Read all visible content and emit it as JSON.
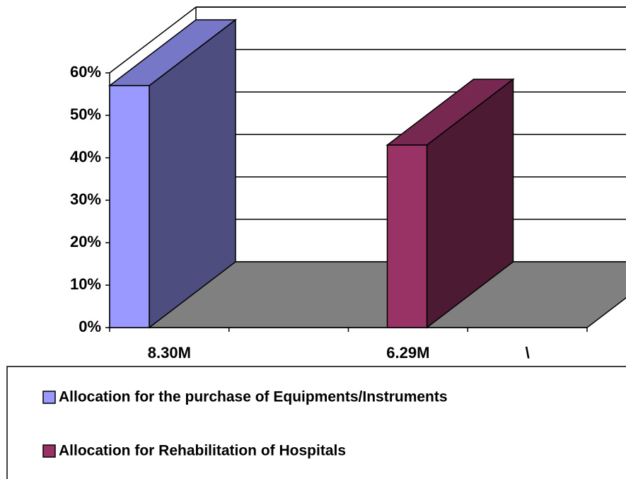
{
  "chart_data": {
    "type": "bar3d",
    "categories": [
      "8.30M",
      null,
      "6.29M",
      "\\"
    ],
    "series": [
      {
        "name": "Allocation for the purchase of Equipments/Instruments",
        "color": "#9999ff",
        "values": [
          57,
          null,
          null,
          null
        ]
      },
      {
        "name": "Allocation for Rehabilitation of Hospitals",
        "color": "#993366",
        "values": [
          null,
          null,
          43,
          null
        ]
      }
    ],
    "ylim": [
      0,
      60
    ],
    "yticks": [
      {
        "value": 0,
        "label": "0%"
      },
      {
        "value": 10,
        "label": "10%"
      },
      {
        "value": 20,
        "label": "20%"
      },
      {
        "value": 30,
        "label": "30%"
      },
      {
        "value": 40,
        "label": "40%"
      },
      {
        "value": 50,
        "label": "50%"
      },
      {
        "value": 60,
        "label": "60%"
      }
    ],
    "grid": true,
    "legend": "bottom"
  }
}
